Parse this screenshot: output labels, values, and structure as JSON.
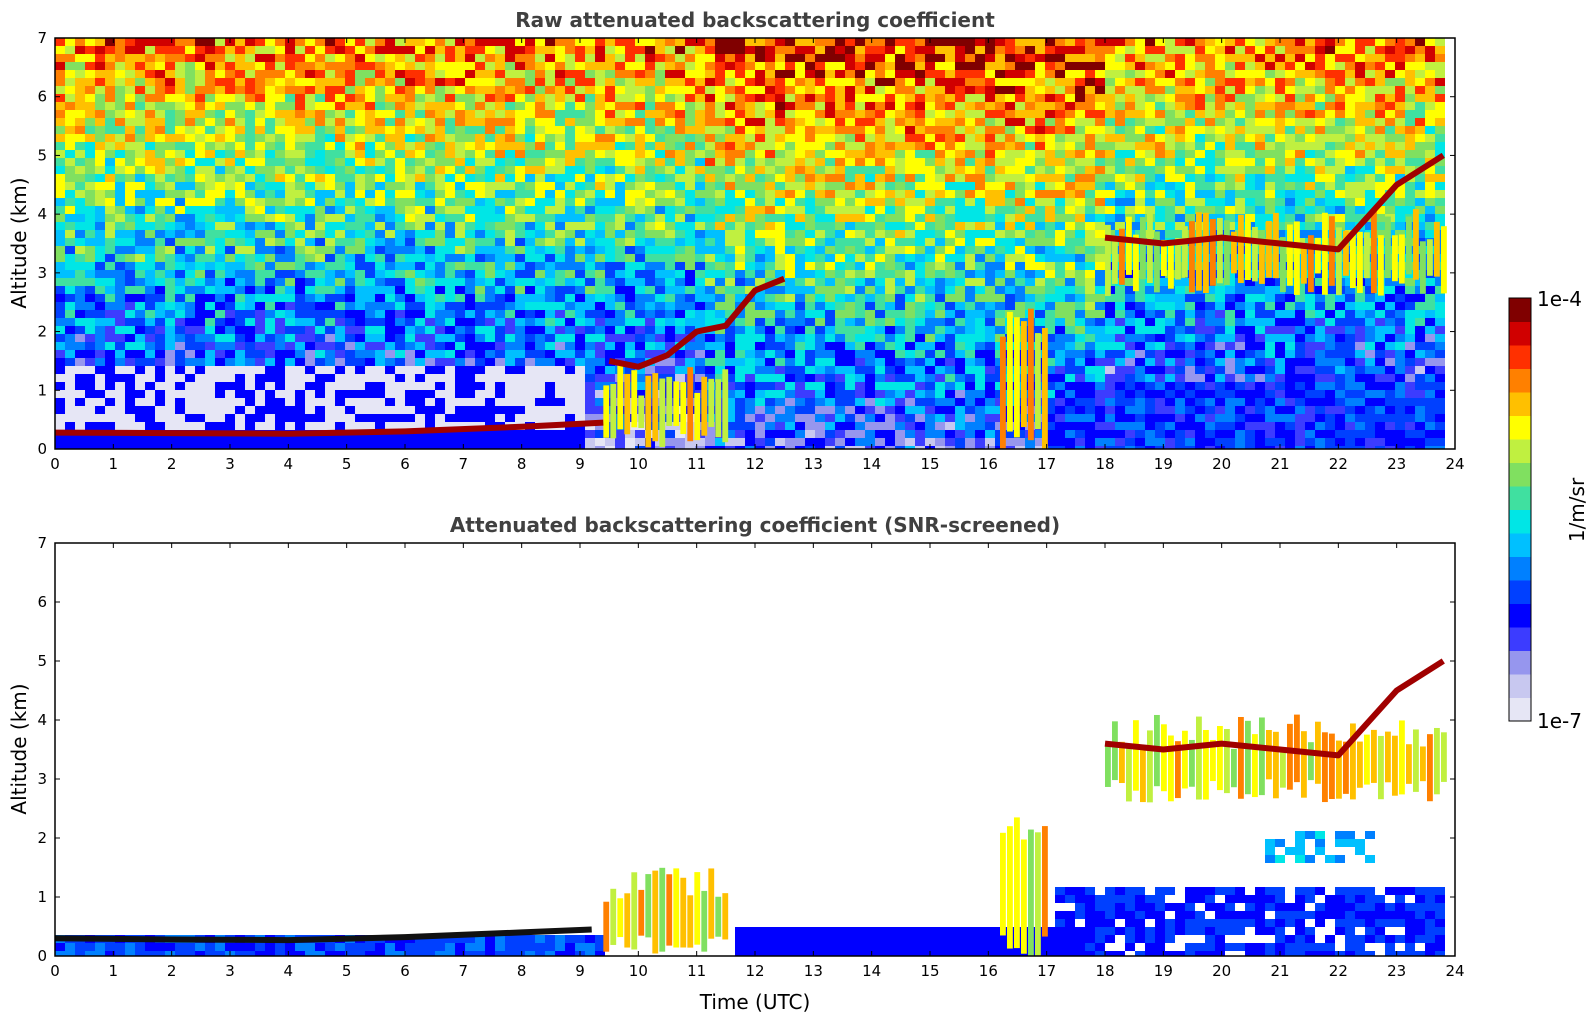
{
  "chart_data": [
    {
      "type": "heatmap",
      "title": "Raw attenuated backscattering coefficient",
      "xlabel": "",
      "ylabel": "Altitude (km)",
      "xlim": [
        0,
        24
      ],
      "ylim": [
        0,
        7
      ],
      "xticks": [
        "0",
        "1",
        "2",
        "3",
        "4",
        "5",
        "6",
        "7",
        "8",
        "9",
        "10",
        "11",
        "12",
        "13",
        "14",
        "15",
        "16",
        "17",
        "18",
        "19",
        "20",
        "21",
        "22",
        "23",
        "24"
      ],
      "yticks": [
        "0",
        "1",
        "2",
        "3",
        "4",
        "5",
        "6",
        "7"
      ],
      "features": [
        {
          "name": "boundary-layer-top",
          "x": [
            0,
            2,
            4,
            6,
            8,
            9.4
          ],
          "y": [
            0.28,
            0.27,
            0.26,
            0.3,
            0.38,
            0.45
          ]
        },
        {
          "name": "cloud-layer-midday",
          "x": [
            9.5,
            10,
            10.5,
            11,
            11.5,
            12,
            12.5
          ],
          "y": [
            1.5,
            1.4,
            1.6,
            2.0,
            2.1,
            2.7,
            2.9
          ]
        },
        {
          "name": "cloud-layer-evening",
          "x": [
            18,
            19,
            20,
            21,
            22,
            23,
            23.8
          ],
          "y": [
            3.6,
            3.5,
            3.6,
            3.5,
            3.4,
            4.5,
            5.0
          ]
        }
      ]
    },
    {
      "type": "heatmap",
      "title": "Attenuated backscattering coefficient (SNR-screened)",
      "xlabel": "Time (UTC)",
      "ylabel": "Altitude (km)",
      "xlim": [
        0,
        24
      ],
      "ylim": [
        0,
        7
      ],
      "xticks": [
        "0",
        "1",
        "2",
        "3",
        "4",
        "5",
        "6",
        "7",
        "8",
        "9",
        "10",
        "11",
        "12",
        "13",
        "14",
        "15",
        "16",
        "17",
        "18",
        "19",
        "20",
        "21",
        "22",
        "23",
        "24"
      ],
      "yticks": [
        "0",
        "1",
        "2",
        "3",
        "4",
        "5",
        "6",
        "7"
      ],
      "features": [
        {
          "name": "boundary-layer-top",
          "x": [
            0,
            2,
            4,
            6,
            8,
            9.2
          ],
          "y": [
            0.3,
            0.28,
            0.27,
            0.32,
            0.4,
            0.45
          ]
        },
        {
          "name": "cloud-layer-evening",
          "x": [
            18,
            19,
            20,
            21,
            22,
            23,
            23.8
          ],
          "y": [
            3.6,
            3.5,
            3.6,
            3.5,
            3.4,
            4.5,
            5.0
          ]
        }
      ]
    }
  ],
  "colorbar": {
    "label": "1/m/sr",
    "max_label": "1e-4",
    "min_label": "1e-7",
    "colors": [
      "#e6e6f5",
      "#c8c8f0",
      "#9696ee",
      "#3c3cff",
      "#0000ff",
      "#0040ff",
      "#0080ff",
      "#00c0ff",
      "#00e6e6",
      "#40e0a0",
      "#80e060",
      "#c0f040",
      "#ffff00",
      "#ffc000",
      "#ff8000",
      "#ff3000",
      "#d00000",
      "#800000"
    ]
  }
}
